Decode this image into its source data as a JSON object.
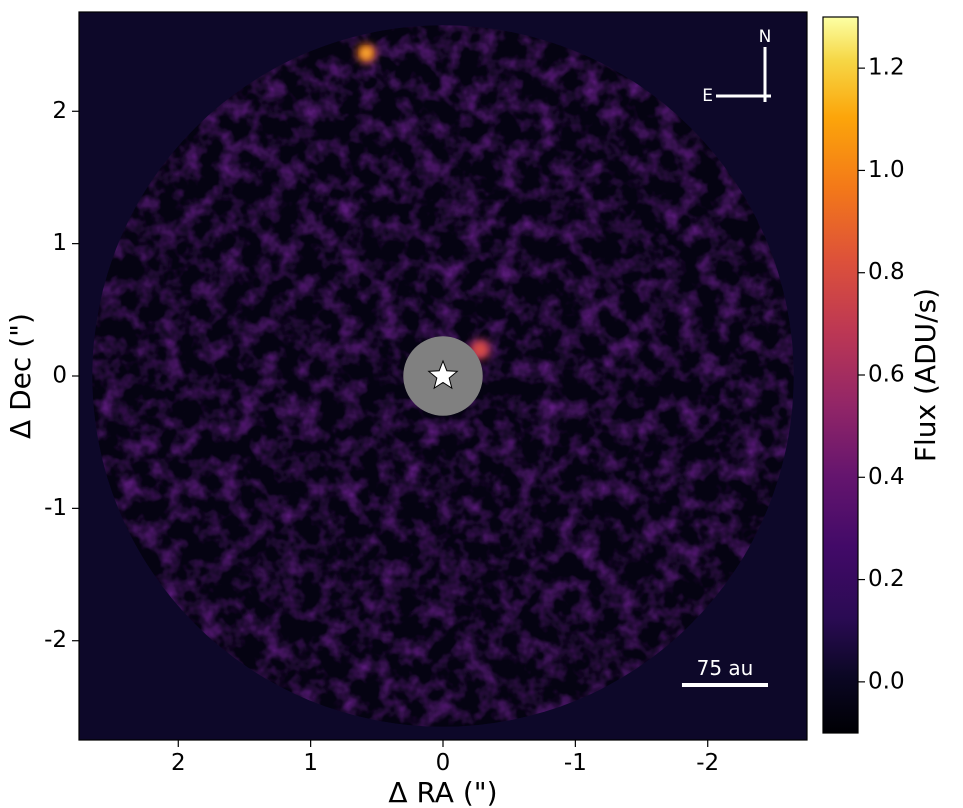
{
  "chart_data": {
    "type": "heatmap",
    "description_units": {
      "x": "arcsec",
      "y": "arcsec",
      "color": "ADU/s"
    },
    "xlabel": "Δ RA (\")",
    "ylabel": "Δ Dec (\")",
    "xlim": [
      2.75,
      -2.75
    ],
    "ylim": [
      -2.75,
      2.75
    ],
    "x_ticks": [
      2,
      1,
      0,
      -1,
      -2
    ],
    "x_tick_labels": [
      "2",
      "1",
      "0",
      "-1",
      "-2"
    ],
    "y_ticks": [
      2,
      1,
      0,
      -1,
      -2
    ],
    "y_tick_labels": [
      "2",
      "1",
      "0",
      "-1",
      "-2"
    ],
    "colorbar": {
      "label": "Flux (ADU/s)",
      "range": [
        -0.1,
        1.3
      ],
      "ticks": [
        0.0,
        0.2,
        0.4,
        0.6,
        0.8,
        1.0,
        1.2
      ],
      "tick_labels": [
        "0.0",
        "0.2",
        "0.4",
        "0.6",
        "0.8",
        "1.0",
        "1.2"
      ],
      "colormap": "inferno"
    },
    "field_radius": 2.65,
    "mask_radius": 0.3,
    "star_position": [
      0,
      0
    ],
    "sources": [
      {
        "x": 0.58,
        "y": 2.44,
        "flux": 1.2
      },
      {
        "x": -0.28,
        "y": 0.2,
        "flux": 0.55
      }
    ],
    "compass": {
      "north": "N",
      "east": "E"
    },
    "scale_bar": {
      "label": "75 au",
      "length_arcsec": 0.65
    }
  },
  "colors": {
    "background": "#0d0829",
    "mask": "#808080",
    "compass": "#ffffff",
    "scale_bar": "#ffffff"
  }
}
